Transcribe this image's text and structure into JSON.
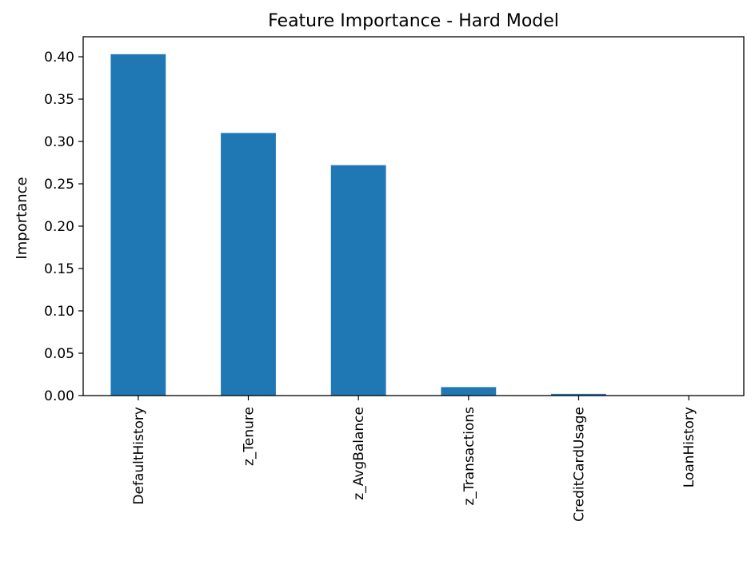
{
  "chart_data": {
    "type": "bar",
    "title": "Feature Importance - Hard Model",
    "xlabel": "",
    "ylabel": "Importance",
    "categories": [
      "DefaultHistory",
      "z_Tenure",
      "z_AvgBalance",
      "z_Transactions",
      "CreditCardUsage",
      "LoanHistory"
    ],
    "values": [
      0.403,
      0.31,
      0.272,
      0.01,
      0.002,
      0.0003
    ],
    "ylim": [
      0,
      0.4236
    ],
    "yticks": [
      0.0,
      0.05,
      0.1,
      0.15,
      0.2,
      0.25,
      0.3,
      0.35,
      0.4
    ],
    "ytick_labels": [
      "0.00",
      "0.05",
      "0.10",
      "0.15",
      "0.20",
      "0.25",
      "0.30",
      "0.35",
      "0.40"
    ],
    "bar_color": "#1f77b4",
    "grid": false,
    "legend": false
  }
}
